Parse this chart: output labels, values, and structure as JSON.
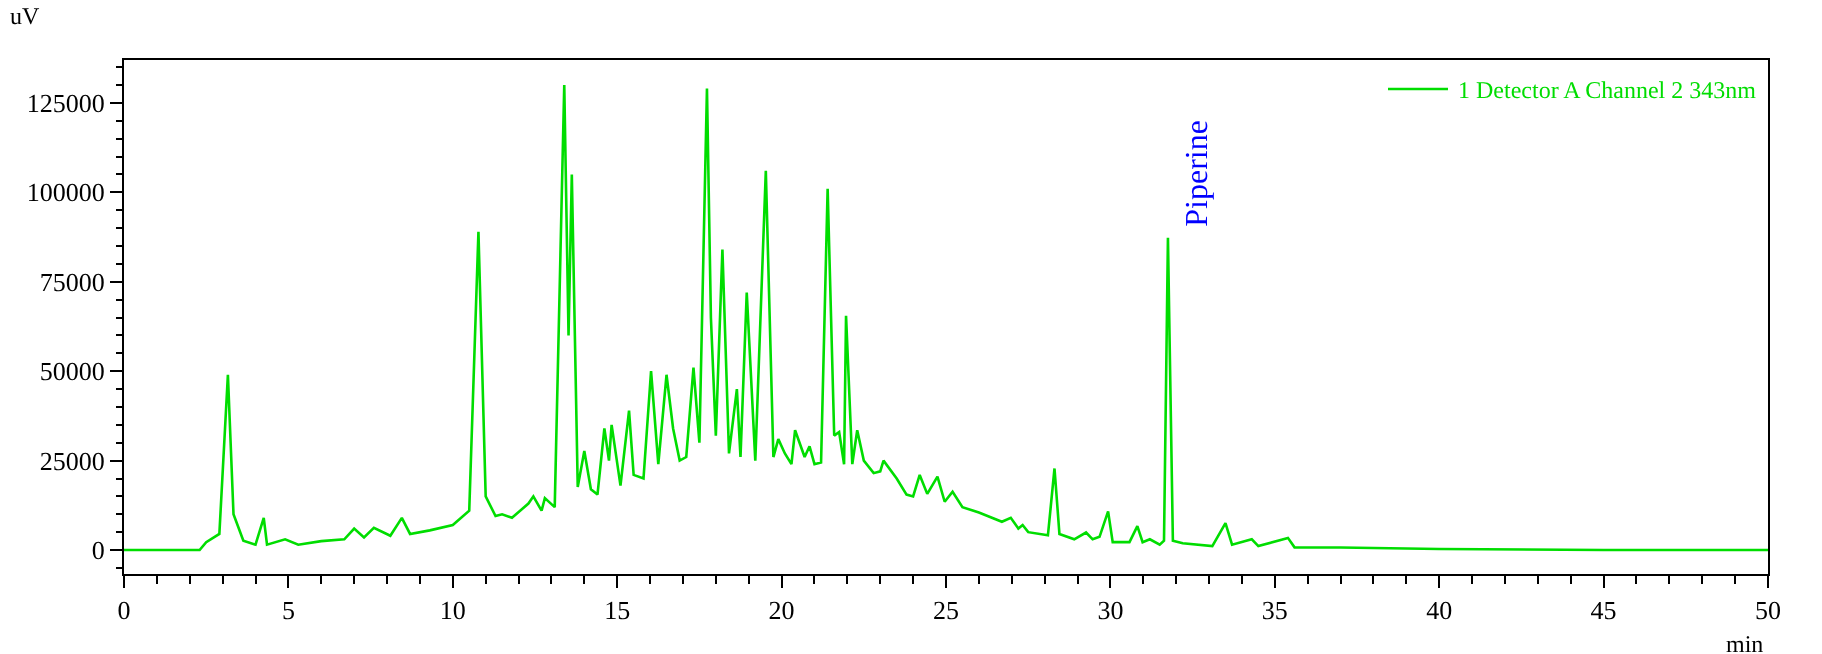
{
  "chart_data": {
    "type": "line",
    "xlabel": "min",
    "ylabel": "uV",
    "x": [
      0,
      2.3,
      2.5,
      2.9,
      3.16,
      3.33,
      3.63,
      4.0,
      4.25,
      4.35,
      4.9,
      5.3,
      6.0,
      6.7,
      7.0,
      7.3,
      7.6,
      8.1,
      8.45,
      8.7,
      9.3,
      10.0,
      10.5,
      10.78,
      11.0,
      11.3,
      11.5,
      11.8,
      12.3,
      12.45,
      12.7,
      12.8,
      13.1,
      13.39,
      13.52,
      13.62,
      13.8,
      14.0,
      14.2,
      14.4,
      14.61,
      14.75,
      14.83,
      15.1,
      15.36,
      15.5,
      15.8,
      16.03,
      16.25,
      16.5,
      16.7,
      16.9,
      17.1,
      17.32,
      17.5,
      17.73,
      17.85,
      18.0,
      18.2,
      18.4,
      18.64,
      18.75,
      18.94,
      19.2,
      19.52,
      19.75,
      19.9,
      20.1,
      20.3,
      20.41,
      20.7,
      20.85,
      21.0,
      21.2,
      21.4,
      21.6,
      21.75,
      21.9,
      21.96,
      22.15,
      22.3,
      22.5,
      22.8,
      23.0,
      23.1,
      23.5,
      23.8,
      24.0,
      24.2,
      24.43,
      24.74,
      24.96,
      25.2,
      25.5,
      26.0,
      26.7,
      26.97,
      27.2,
      27.33,
      27.5,
      28.1,
      28.3,
      28.45,
      28.9,
      29.26,
      29.46,
      29.67,
      29.93,
      30.07,
      30.58,
      30.82,
      30.98,
      31.2,
      31.5,
      31.63,
      31.75,
      31.9,
      32.2,
      33.1,
      33.5,
      33.7,
      34.3,
      34.5,
      35.4,
      35.6,
      37,
      40,
      45,
      50
    ],
    "series": [
      {
        "name": "1 Detector A Channel 2 343nm",
        "color": "#00dd00",
        "values": [
          0,
          0,
          2200,
          4500,
          49000,
          10000,
          2600,
          1500,
          9000,
          1500,
          3000,
          1500,
          2500,
          3000,
          6000,
          3500,
          6200,
          4000,
          9000,
          4500,
          5500,
          7000,
          11000,
          89000,
          15000,
          9500,
          10000,
          9000,
          13000,
          15000,
          11000,
          14500,
          12000,
          130000,
          60000,
          105000,
          17600,
          27700,
          17000,
          15500,
          34000,
          25000,
          35000,
          18000,
          39000,
          21000,
          20000,
          50000,
          24000,
          49000,
          34000,
          25000,
          26000,
          51000,
          30000,
          129000,
          65000,
          32000,
          84000,
          27000,
          45000,
          26000,
          72000,
          25000,
          106000,
          26000,
          31000,
          27000,
          24000,
          33500,
          26000,
          29000,
          24000,
          24500,
          101000,
          32000,
          33000,
          24000,
          65500,
          24000,
          33500,
          25000,
          21500,
          22000,
          25000,
          20000,
          15500,
          15000,
          21000,
          15700,
          20500,
          13500,
          16300,
          12000,
          10500,
          7900,
          9000,
          6000,
          7000,
          5000,
          4100,
          22800,
          4500,
          3000,
          4900,
          3000,
          3700,
          10800,
          2200,
          2200,
          6700,
          2200,
          3000,
          1500,
          2600,
          87300,
          2600,
          1900,
          1100,
          7500,
          1500,
          3000,
          1100,
          3400,
          750,
          700,
          300,
          0,
          0
        ]
      }
    ],
    "annotations": [
      {
        "text": "Piperine",
        "x": 31.75,
        "y": 87300
      }
    ],
    "xlim": [
      0,
      50
    ],
    "xticks": [
      0,
      5,
      10,
      15,
      20,
      25,
      30,
      35,
      40,
      45,
      50
    ],
    "ylim": [
      -6700,
      137000
    ],
    "yticks": [
      0,
      25000,
      50000,
      75000,
      100000,
      125000
    ],
    "grid": false,
    "legend": "top right",
    "marker": "none",
    "line_style": "solid"
  }
}
